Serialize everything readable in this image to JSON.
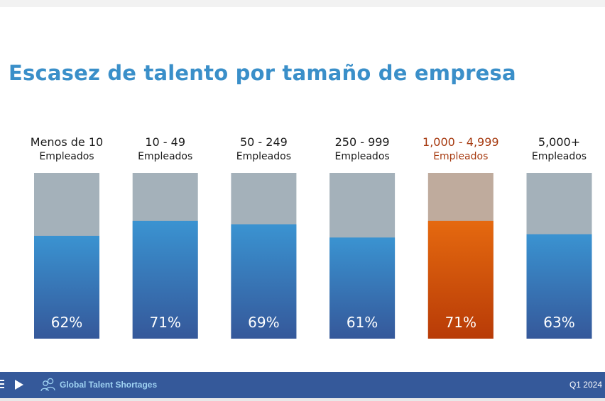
{
  "title": "Escasez de talento por tamaño de empresa",
  "chart_data": {
    "type": "bar",
    "categories": [
      {
        "line1": "Menos de 10",
        "line2": "Empleados"
      },
      {
        "line1": "10 - 49",
        "line2": "Empleados"
      },
      {
        "line1": "50 - 249",
        "line2": "Empleados"
      },
      {
        "line1": "250 - 999",
        "line2": "Empleados"
      },
      {
        "line1": "1,000 - 4,999",
        "line2": "Empleados"
      },
      {
        "line1": "5,000+",
        "line2": "Empleados"
      }
    ],
    "values": [
      62,
      71,
      69,
      61,
      71,
      63
    ],
    "value_labels": [
      "62%",
      "71%",
      "69%",
      "61%",
      "71%",
      "63%"
    ],
    "ylim": [
      0,
      100
    ],
    "highlight_index": 4,
    "colors": {
      "track": "#a4b1ba",
      "track_highlight": "#bfab9d",
      "fill_top": "#3a93d1",
      "fill_bottom": "#35589a",
      "highlight_top": "#e5690f",
      "highlight_bottom": "#b83b07",
      "label": "#1a1a1a",
      "label_highlight": "#a63a10"
    }
  },
  "footer": {
    "icon": "people-icon",
    "label": "Global Talent Shortages",
    "period": "Q1 2024"
  }
}
